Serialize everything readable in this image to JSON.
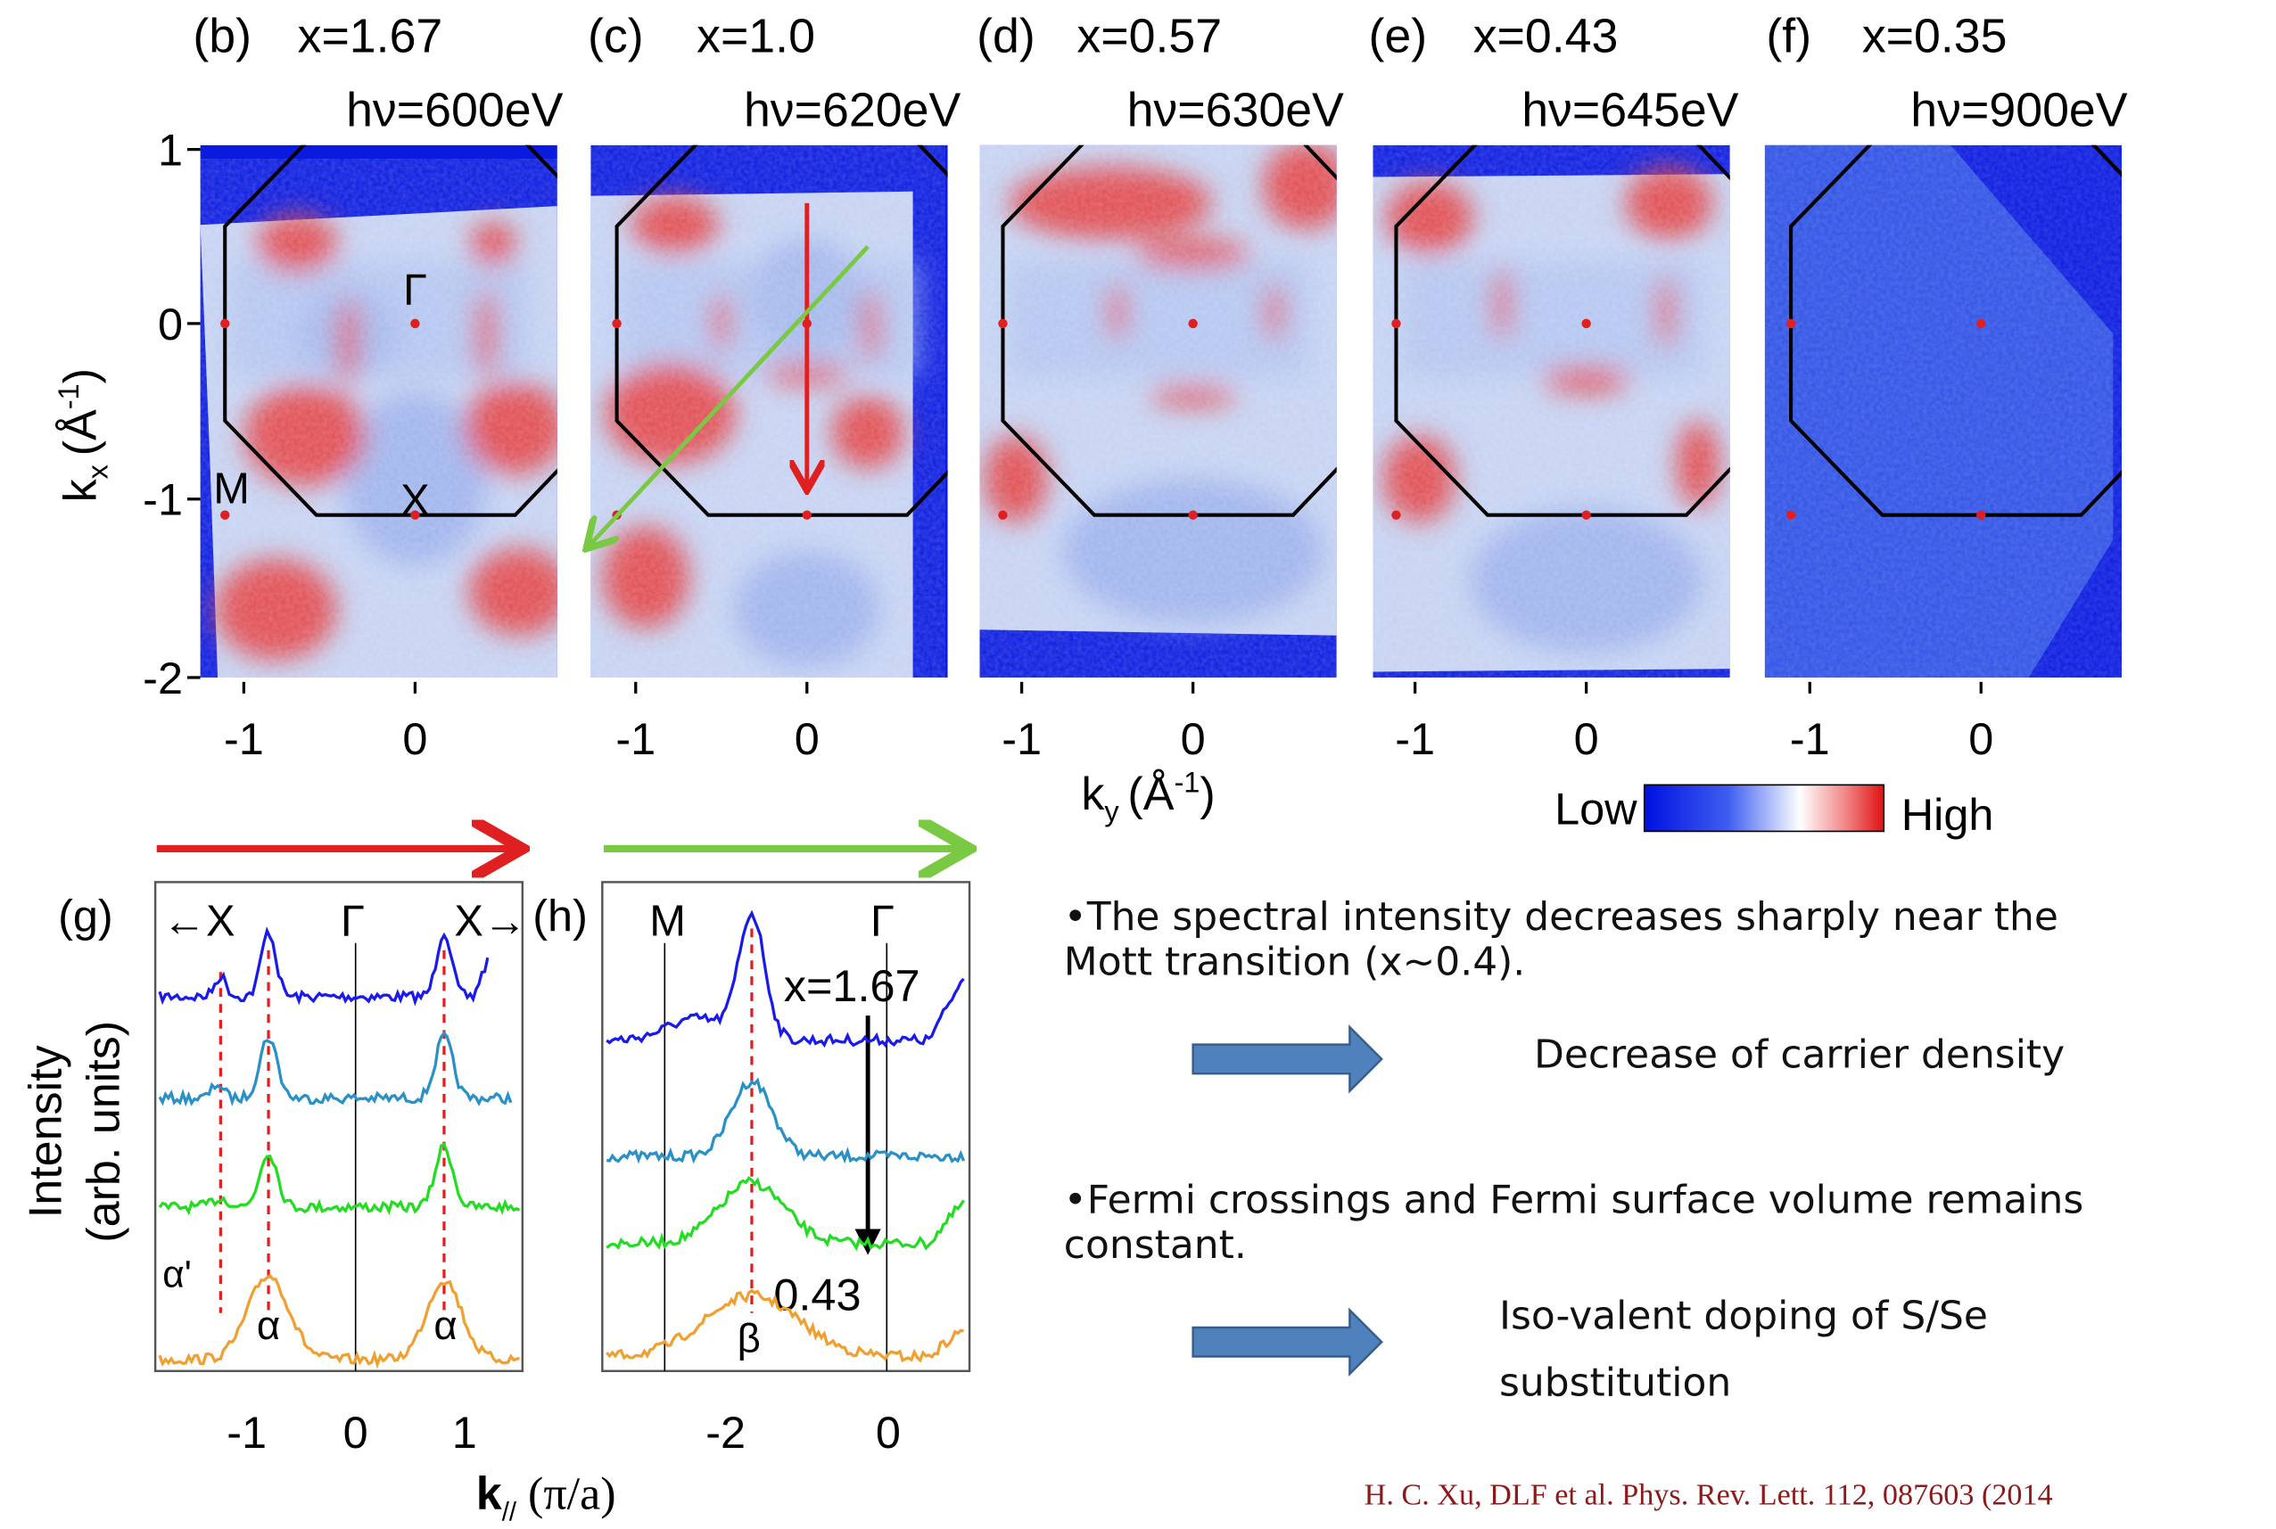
{
  "maps": {
    "panels": [
      {
        "label": "(b)",
        "doping": "x=1.67",
        "photon": "hν=600eV"
      },
      {
        "label": "(c)",
        "doping": "x=1.0",
        "photon": "hν=620eV"
      },
      {
        "label": "(d)",
        "doping": "x=0.57",
        "photon": "hν=630eV"
      },
      {
        "label": "(e)",
        "doping": "x=0.43",
        "photon": "hν=645eV"
      },
      {
        "label": "(f)",
        "doping": "x=0.35",
        "photon": "hν=900eV"
      }
    ],
    "y_ticks": [
      "1",
      "0",
      "-1",
      "-2"
    ],
    "x_ticks": [
      "-1",
      "0"
    ],
    "y_axis_label": {
      "symbol": "k",
      "subscript": "x",
      "unit_open": "(Å",
      "superscript": "-1",
      "unit_close": ")"
    },
    "x_axis_label": {
      "symbol": "k",
      "subscript": "y",
      "unit_open": "(Å",
      "superscript": "-1",
      "unit_close": ")"
    },
    "point_labels": {
      "gamma": "Γ",
      "m": "M",
      "x": "X"
    },
    "colorbar": {
      "low": "Low",
      "high": "High"
    }
  },
  "spectra_g": {
    "label": "(g)",
    "top_labels": [
      "←X",
      "Γ",
      "X→"
    ],
    "peak_labels": [
      "α'",
      "α",
      "α"
    ],
    "x_ticks": [
      "-1",
      "0",
      "1"
    ]
  },
  "spectra_h": {
    "label": "(h)",
    "top_labels": [
      "M",
      "Γ"
    ],
    "doping_start": "x=1.67",
    "doping_end": "0.43",
    "peak_label": "β",
    "x_ticks": [
      "-2",
      "0"
    ]
  },
  "spectra_y_label": [
    "Intensity",
    "(arb. units)"
  ],
  "spectra_x_label": {
    "symbol": "k",
    "subscript": "//",
    "unit": "(π/a)"
  },
  "notes": [
    {
      "lines": [
        "•The spectral intensity decreases sharply near the",
        "Mott transition (x~0.4)."
      ],
      "conclusion": [
        "Decrease of carrier density"
      ]
    },
    {
      "lines": [
        "•Fermi crossings and Fermi surface volume remains",
        "constant."
      ],
      "conclusion": [
        "Iso-valent doping of S/Se",
        "substitution"
      ]
    }
  ],
  "citation": "H. C. Xu, DLF et al. Phys. Rev. Lett. 112, 087603 (2014"
}
